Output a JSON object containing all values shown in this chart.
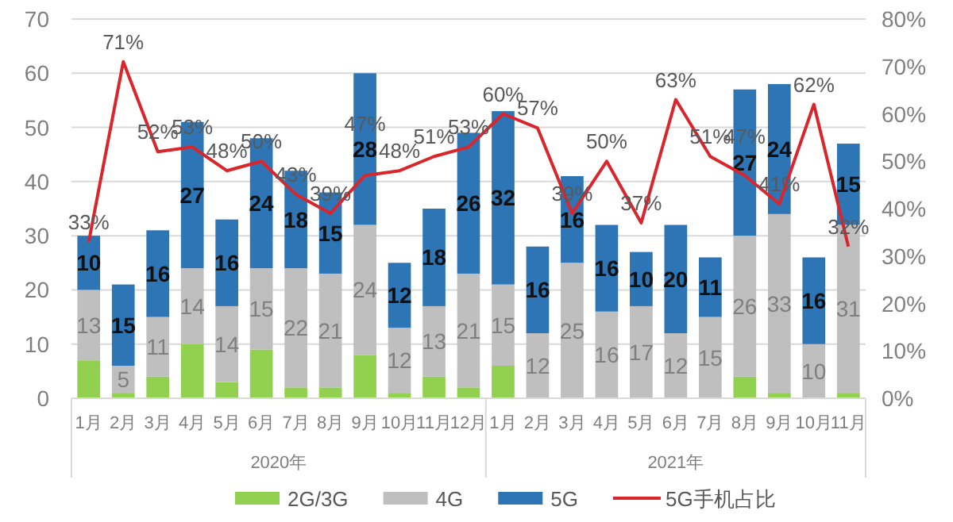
{
  "chart_data": {
    "type": "bar",
    "stacked": true,
    "categories": [
      "1月",
      "2月",
      "3月",
      "4月",
      "5月",
      "6月",
      "7月",
      "8月",
      "9月",
      "10月",
      "11月",
      "12月",
      "1月",
      "2月",
      "3月",
      "4月",
      "5月",
      "6月",
      "7月",
      "8月",
      "9月",
      "10月",
      "11月"
    ],
    "series": [
      {
        "name": "2G/3G",
        "color": "#92d050",
        "values": [
          7,
          1,
          4,
          10,
          3,
          9,
          2,
          2,
          8,
          1,
          4,
          2,
          6,
          0,
          0,
          0,
          0,
          0,
          0,
          4,
          1,
          0,
          1
        ]
      },
      {
        "name": "4G",
        "color": "#bfbfbf",
        "values": [
          13,
          5,
          11,
          14,
          14,
          15,
          22,
          21,
          24,
          12,
          13,
          21,
          15,
          12,
          25,
          16,
          17,
          12,
          15,
          26,
          33,
          10,
          31
        ],
        "value_labels": [
          "13",
          "5",
          "11",
          "14",
          "14",
          "15",
          "22",
          "21",
          "24",
          "12",
          "13",
          "21",
          "15",
          "12",
          "25",
          "16",
          "17",
          "12",
          "15",
          "26",
          "33",
          "10",
          "31"
        ]
      },
      {
        "name": "5G",
        "color": "#2e75b6",
        "values": [
          10,
          15,
          16,
          27,
          16,
          24,
          18,
          15,
          28,
          12,
          18,
          26,
          32,
          16,
          16,
          16,
          10,
          20,
          11,
          27,
          24,
          16,
          15
        ],
        "value_labels": [
          "10",
          "15",
          "16",
          "27",
          "16",
          "24",
          "18",
          "15",
          "28",
          "12",
          "18",
          "26",
          "32",
          "16",
          "16",
          "16",
          "10",
          "20",
          "11",
          "27",
          "24",
          "16",
          "15"
        ]
      },
      {
        "name": "5G手机占比",
        "type": "line",
        "axis": "y2",
        "color": "#d9262c",
        "values": [
          33,
          71,
          52,
          53,
          48,
          50,
          43,
          39,
          47,
          48,
          51,
          53,
          60,
          57,
          39,
          50,
          37,
          63,
          51,
          47,
          41,
          62,
          32
        ],
        "value_labels": [
          "33%",
          "71%",
          "52%",
          "53%",
          "48%",
          "50%",
          "43%",
          "39%",
          "47%",
          "48%",
          "51%",
          "53%",
          "60%",
          "57%",
          "39%",
          "50%",
          "37%",
          "63%",
          "51%",
          "47%",
          "41%",
          "62%",
          "32%"
        ]
      }
    ],
    "ylim": [
      0,
      70
    ],
    "yticks": [
      0,
      10,
      20,
      30,
      40,
      50,
      60,
      70
    ],
    "y2lim": [
      0,
      80
    ],
    "y2ticks": [
      {
        "value": 0,
        "label": "0%"
      },
      {
        "value": 10,
        "label": "10%"
      },
      {
        "value": 20,
        "label": "20%"
      },
      {
        "value": 30,
        "label": "30%"
      },
      {
        "value": 40,
        "label": "40%"
      },
      {
        "value": 50,
        "label": "50%"
      },
      {
        "value": 60,
        "label": "60%"
      },
      {
        "value": 70,
        "label": "70%"
      },
      {
        "value": 80,
        "label": "80%"
      }
    ],
    "annotations": [
      "2020年",
      "2021年"
    ],
    "grid": "y",
    "legend": "bottom"
  }
}
